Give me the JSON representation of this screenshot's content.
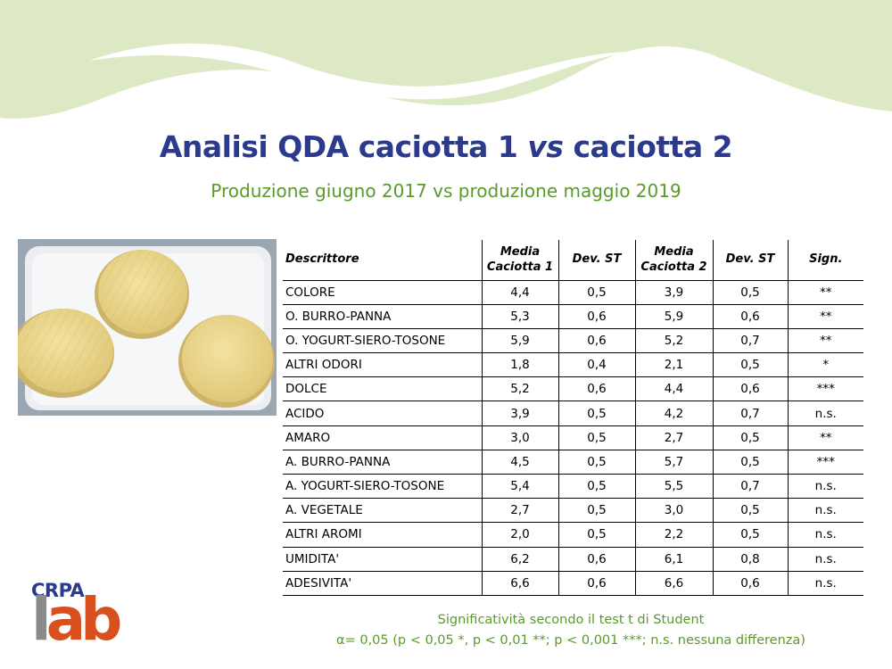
{
  "slide": {
    "title_main": "Analisi QDA caciotta 1 ",
    "title_vs": "vs",
    "title_end": " caciotta 2",
    "subtitle": "Produzione giugno 2017 vs produzione maggio 2019"
  },
  "table": {
    "headers": [
      "Descrittore",
      "Media",
      "Caciotta 1",
      "Dev. ST",
      "Media",
      "Caciotta 2",
      "Dev. ST",
      "Sign."
    ],
    "rows": [
      [
        "COLORE",
        "4,4",
        "0,5",
        "3,9",
        "0,5",
        "**"
      ],
      [
        "O. BURRO-PANNA",
        "5,3",
        "0,6",
        "5,9",
        "0,6",
        "**"
      ],
      [
        "O. YOGURT-SIERO-TOSONE",
        "5,9",
        "0,6",
        "5,2",
        "0,7",
        "**"
      ],
      [
        "ALTRI ODORI",
        "1,8",
        "0,4",
        "2,1",
        "0,5",
        "*"
      ],
      [
        "DOLCE",
        "5,2",
        "0,6",
        "4,4",
        "0,6",
        "***"
      ],
      [
        "ACIDO",
        "3,9",
        "0,5",
        "4,2",
        "0,7",
        "n.s."
      ],
      [
        "AMARO",
        "3,0",
        "0,5",
        "2,7",
        "0,5",
        "**"
      ],
      [
        "A. BURRO-PANNA",
        "4,5",
        "0,5",
        "5,7",
        "0,5",
        "***"
      ],
      [
        "A. YOGURT-SIERO-TOSONE",
        "5,4",
        "0,5",
        "5,5",
        "0,7",
        "n.s."
      ],
      [
        "A. VEGETALE",
        "2,7",
        "0,5",
        "3,0",
        "0,5",
        "n.s."
      ],
      [
        "ALTRI AROMI",
        "2,0",
        "0,5",
        "2,2",
        "0,5",
        "n.s."
      ],
      [
        "UMIDITA'",
        "6,2",
        "0,6",
        "6,1",
        "0,8",
        "n.s."
      ],
      [
        "ADESIVITA'",
        "6,6",
        "0,6",
        "6,6",
        "0,6",
        "n.s."
      ]
    ]
  },
  "footnote": {
    "line1": "Significatività secondo il test t di Student",
    "line2": "α= 0,05 (p < 0,05 *, p < 0,01 **; p < 0,001 ***; n.s. nessuna differenza)"
  },
  "logo": {
    "top": "CRPA",
    "l": "l",
    "rest": "ab"
  },
  "colors": {
    "title": "#2b3a8c",
    "green": "#5a9a2a",
    "wave": "#dce9c4",
    "logo_orange": "#d8501e"
  }
}
